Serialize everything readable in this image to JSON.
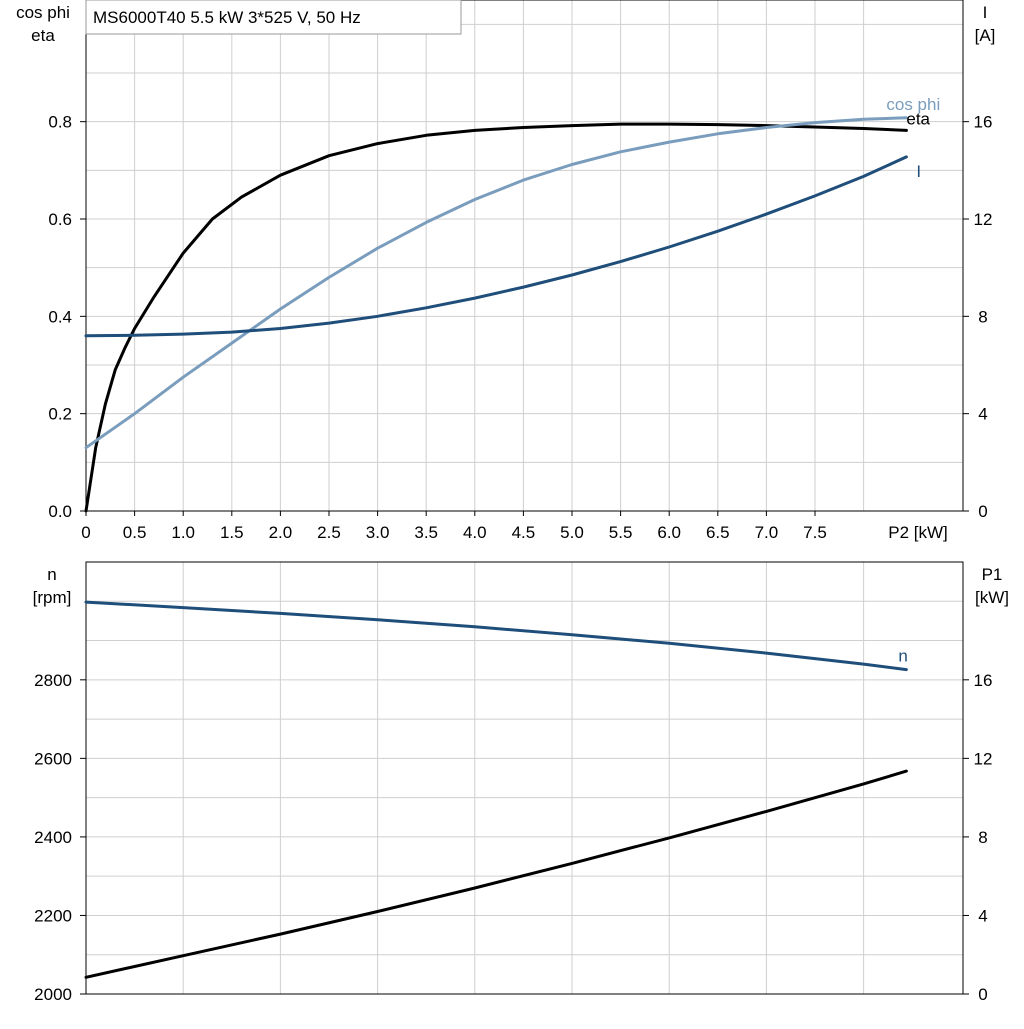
{
  "chart_data": [
    {
      "type": "line",
      "title": "MS6000T40   5.5 kW   3*525 V, 50 Hz",
      "x_axis": {
        "label": "P2 [kW]",
        "lim": [
          0,
          8.5
        ],
        "ticks": [
          "0",
          "0.5",
          "1.0",
          "1.5",
          "2.0",
          "2.5",
          "3.0",
          "3.5",
          "4.0",
          "4.5",
          "5.0",
          "5.5",
          "6.0",
          "6.5",
          "7.0",
          "7.5"
        ]
      },
      "y_left": {
        "label_line1": "cos phi",
        "label_line2": "eta",
        "lim": [
          0,
          1.05
        ],
        "ticks": [
          "0.0",
          "0.2",
          "0.4",
          "0.6",
          "0.8"
        ]
      },
      "y_right": {
        "label_line1": "I",
        "label_line2": "[A]",
        "lim": [
          0,
          21
        ],
        "ticks": [
          "0",
          "4",
          "8",
          "12",
          "16"
        ]
      },
      "grid": true,
      "series": [
        {
          "name": "eta",
          "axis": "left",
          "color": "#000000",
          "x": [
            0,
            0.1,
            0.2,
            0.3,
            0.4,
            0.5,
            0.7,
            1.0,
            1.3,
            1.6,
            2.0,
            2.5,
            3.0,
            3.5,
            4.0,
            4.5,
            5.0,
            5.5,
            6.0,
            6.5,
            7.0,
            7.5,
            8.0,
            8.44
          ],
          "y": [
            0.0,
            0.13,
            0.22,
            0.29,
            0.335,
            0.375,
            0.44,
            0.53,
            0.6,
            0.645,
            0.69,
            0.73,
            0.755,
            0.772,
            0.782,
            0.788,
            0.792,
            0.795,
            0.795,
            0.794,
            0.792,
            0.789,
            0.786,
            0.782
          ]
        },
        {
          "name": "cos phi",
          "axis": "left",
          "color": "#7a9dbd",
          "x": [
            0,
            0.5,
            1.0,
            1.5,
            2.0,
            2.5,
            3.0,
            3.5,
            4.0,
            4.5,
            5.0,
            5.5,
            6.0,
            6.5,
            7.0,
            7.5,
            8.0,
            8.44
          ],
          "y": [
            0.13,
            0.2,
            0.275,
            0.345,
            0.415,
            0.48,
            0.54,
            0.593,
            0.64,
            0.68,
            0.712,
            0.738,
            0.758,
            0.775,
            0.788,
            0.798,
            0.805,
            0.808
          ]
        },
        {
          "name": "I",
          "axis": "right",
          "color": "#1f4e7a",
          "x": [
            0,
            0.5,
            1.0,
            1.5,
            2.0,
            2.5,
            3.0,
            3.5,
            4.0,
            4.5,
            5.0,
            5.5,
            6.0,
            6.5,
            7.0,
            7.5,
            8.0,
            8.44
          ],
          "y": [
            7.2,
            7.22,
            7.27,
            7.35,
            7.5,
            7.72,
            8.0,
            8.35,
            8.75,
            9.2,
            9.7,
            10.25,
            10.85,
            11.5,
            12.2,
            12.95,
            13.75,
            14.55
          ]
        }
      ]
    },
    {
      "type": "line",
      "x_axis": {
        "lim": [
          0,
          8.5
        ]
      },
      "y_left": {
        "label_line1": "n",
        "label_line2": "[rpm]",
        "lim": [
          2000,
          3100
        ],
        "ticks": [
          "2000",
          "2200",
          "2400",
          "2600",
          "2800"
        ]
      },
      "y_right": {
        "label_line1": "P1",
        "label_line2": "[kW]",
        "lim": [
          0,
          22
        ],
        "ticks": [
          "0",
          "4",
          "8",
          "12",
          "16"
        ]
      },
      "grid": true,
      "series": [
        {
          "name": "n",
          "axis": "left",
          "color": "#1f4e7a",
          "x": [
            0,
            1,
            2,
            3,
            4,
            5,
            6,
            7,
            8,
            8.44
          ],
          "y": [
            2998,
            2984,
            2969,
            2953,
            2935,
            2915,
            2893,
            2868,
            2840,
            2826
          ]
        },
        {
          "name": "P1",
          "axis": "right",
          "color": "#000000",
          "x": [
            0,
            1,
            2,
            3,
            4,
            5,
            6,
            7,
            8,
            8.44
          ],
          "y": [
            0.85,
            1.95,
            3.05,
            4.2,
            5.4,
            6.65,
            7.95,
            9.3,
            10.7,
            11.35
          ]
        }
      ]
    }
  ]
}
